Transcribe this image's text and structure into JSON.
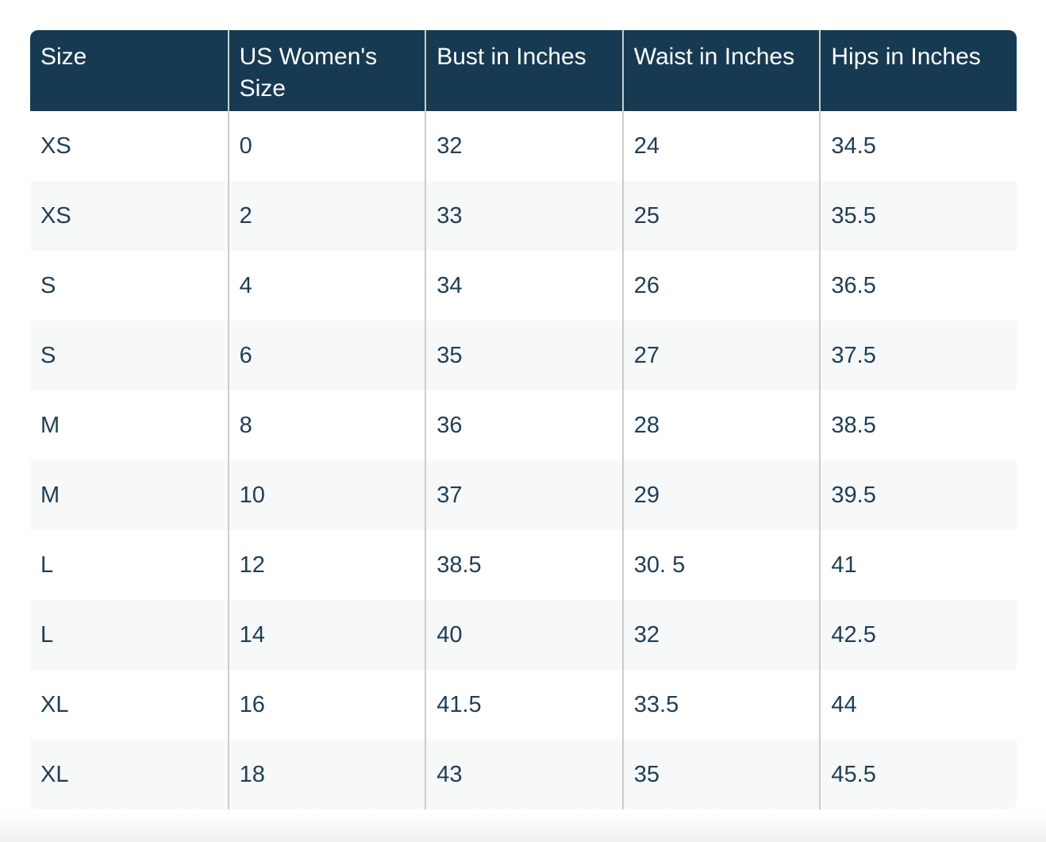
{
  "chart_data": {
    "type": "table",
    "columns": [
      "Size",
      "US Women's Size",
      "Bust in Inches",
      "Waist in Inches",
      "Hips in Inches"
    ],
    "rows": [
      [
        "XS",
        "0",
        "32",
        "24",
        "34.5"
      ],
      [
        "XS",
        "2",
        "33",
        "25",
        "35.5"
      ],
      [
        "S",
        "4",
        "34",
        "26",
        "36.5"
      ],
      [
        "S",
        "6",
        "35",
        "27",
        "37.5"
      ],
      [
        "M",
        "8",
        "36",
        "28",
        "38.5"
      ],
      [
        "M",
        "10",
        "37",
        "29",
        "39.5"
      ],
      [
        "L",
        "12",
        "38.5",
        "30. 5",
        "41"
      ],
      [
        "L",
        "14",
        "40",
        "32",
        "42.5"
      ],
      [
        "XL",
        "16",
        "41.5",
        "33.5",
        "44"
      ],
      [
        "XL",
        "18",
        "43",
        "35",
        "45.5"
      ]
    ]
  },
  "colors": {
    "header_background": "#173a53",
    "header_text": "#ffffff",
    "body_text": "#1d3e57",
    "row_even_background": "#f7f8f8",
    "row_odd_background": "#ffffff",
    "column_divider": "#cccccc"
  }
}
